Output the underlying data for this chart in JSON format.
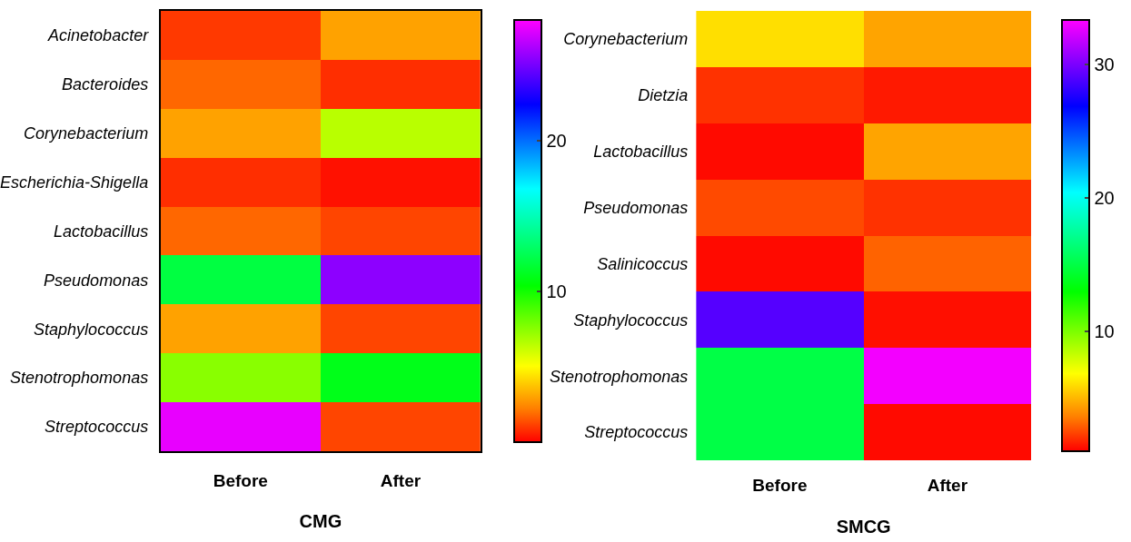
{
  "chart_data": [
    {
      "type": "heatmap",
      "xlabel": "CMG",
      "categories": [
        "Before",
        "After"
      ],
      "y_categories": [
        "Acinetobacter",
        "Bacteroides",
        "Corynebacterium",
        "Escherichia-Shigella",
        "Lactobacillus",
        "Pseudomonas",
        "Staphylococcus",
        "Stenotrophomonas",
        "Streptococcus"
      ],
      "cells": [
        [
          1,
          3
        ],
        [
          1.8,
          0.8
        ],
        [
          3,
          6.5
        ],
        [
          0.8,
          0.3
        ],
        [
          1.8,
          1.2
        ],
        [
          12,
          25.5
        ],
        [
          3,
          1.2
        ],
        [
          7.5,
          11
        ],
        [
          27.5,
          1.2
        ]
      ],
      "clim": [
        0,
        28
      ],
      "cticks": [
        10,
        20
      ]
    },
    {
      "type": "heatmap",
      "xlabel": "SMCG",
      "categories": [
        "Before",
        "After"
      ],
      "y_categories": [
        "Corynebacterium",
        "Dietzia",
        "Lactobacillus",
        "Pseudomonas",
        "Salinicoccus",
        "Staphylococcus",
        "Stenotrophomonas",
        "Streptococcus"
      ],
      "cells": [
        [
          6,
          4.5
        ],
        [
          2,
          1.5
        ],
        [
          1.2,
          4.5
        ],
        [
          2.5,
          2
        ],
        [
          1.2,
          3
        ],
        [
          29,
          1.3
        ],
        [
          15,
          33
        ],
        [
          15,
          1.2
        ]
      ],
      "clim": [
        1,
        33.3
      ],
      "cticks": [
        10,
        20,
        30
      ]
    }
  ]
}
